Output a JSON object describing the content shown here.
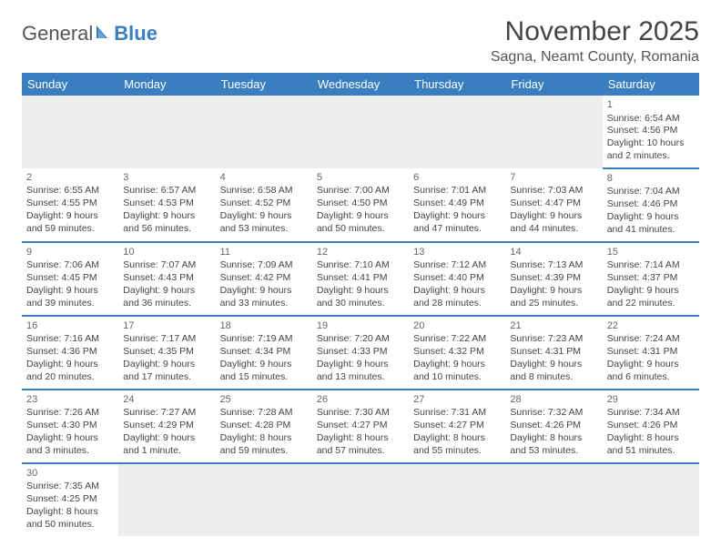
{
  "logo": {
    "part1": "General",
    "part2": "Blue"
  },
  "title": "November 2025",
  "location": "Sagna, Neamt County, Romania",
  "colors": {
    "header_bg": "#3a7ebf",
    "header_text": "#ffffff",
    "rule": "#3a7ebf",
    "blank_bg": "#eeeeee",
    "text": "#444444"
  },
  "day_names": [
    "Sunday",
    "Monday",
    "Tuesday",
    "Wednesday",
    "Thursday",
    "Friday",
    "Saturday"
  ],
  "weeks": [
    [
      null,
      null,
      null,
      null,
      null,
      null,
      {
        "n": "1",
        "sr": "Sunrise: 6:54 AM",
        "ss": "Sunset: 4:56 PM",
        "dl": "Daylight: 10 hours and 2 minutes."
      }
    ],
    [
      {
        "n": "2",
        "sr": "Sunrise: 6:55 AM",
        "ss": "Sunset: 4:55 PM",
        "dl": "Daylight: 9 hours and 59 minutes."
      },
      {
        "n": "3",
        "sr": "Sunrise: 6:57 AM",
        "ss": "Sunset: 4:53 PM",
        "dl": "Daylight: 9 hours and 56 minutes."
      },
      {
        "n": "4",
        "sr": "Sunrise: 6:58 AM",
        "ss": "Sunset: 4:52 PM",
        "dl": "Daylight: 9 hours and 53 minutes."
      },
      {
        "n": "5",
        "sr": "Sunrise: 7:00 AM",
        "ss": "Sunset: 4:50 PM",
        "dl": "Daylight: 9 hours and 50 minutes."
      },
      {
        "n": "6",
        "sr": "Sunrise: 7:01 AM",
        "ss": "Sunset: 4:49 PM",
        "dl": "Daylight: 9 hours and 47 minutes."
      },
      {
        "n": "7",
        "sr": "Sunrise: 7:03 AM",
        "ss": "Sunset: 4:47 PM",
        "dl": "Daylight: 9 hours and 44 minutes."
      },
      {
        "n": "8",
        "sr": "Sunrise: 7:04 AM",
        "ss": "Sunset: 4:46 PM",
        "dl": "Daylight: 9 hours and 41 minutes."
      }
    ],
    [
      {
        "n": "9",
        "sr": "Sunrise: 7:06 AM",
        "ss": "Sunset: 4:45 PM",
        "dl": "Daylight: 9 hours and 39 minutes."
      },
      {
        "n": "10",
        "sr": "Sunrise: 7:07 AM",
        "ss": "Sunset: 4:43 PM",
        "dl": "Daylight: 9 hours and 36 minutes."
      },
      {
        "n": "11",
        "sr": "Sunrise: 7:09 AM",
        "ss": "Sunset: 4:42 PM",
        "dl": "Daylight: 9 hours and 33 minutes."
      },
      {
        "n": "12",
        "sr": "Sunrise: 7:10 AM",
        "ss": "Sunset: 4:41 PM",
        "dl": "Daylight: 9 hours and 30 minutes."
      },
      {
        "n": "13",
        "sr": "Sunrise: 7:12 AM",
        "ss": "Sunset: 4:40 PM",
        "dl": "Daylight: 9 hours and 28 minutes."
      },
      {
        "n": "14",
        "sr": "Sunrise: 7:13 AM",
        "ss": "Sunset: 4:39 PM",
        "dl": "Daylight: 9 hours and 25 minutes."
      },
      {
        "n": "15",
        "sr": "Sunrise: 7:14 AM",
        "ss": "Sunset: 4:37 PM",
        "dl": "Daylight: 9 hours and 22 minutes."
      }
    ],
    [
      {
        "n": "16",
        "sr": "Sunrise: 7:16 AM",
        "ss": "Sunset: 4:36 PM",
        "dl": "Daylight: 9 hours and 20 minutes."
      },
      {
        "n": "17",
        "sr": "Sunrise: 7:17 AM",
        "ss": "Sunset: 4:35 PM",
        "dl": "Daylight: 9 hours and 17 minutes."
      },
      {
        "n": "18",
        "sr": "Sunrise: 7:19 AM",
        "ss": "Sunset: 4:34 PM",
        "dl": "Daylight: 9 hours and 15 minutes."
      },
      {
        "n": "19",
        "sr": "Sunrise: 7:20 AM",
        "ss": "Sunset: 4:33 PM",
        "dl": "Daylight: 9 hours and 13 minutes."
      },
      {
        "n": "20",
        "sr": "Sunrise: 7:22 AM",
        "ss": "Sunset: 4:32 PM",
        "dl": "Daylight: 9 hours and 10 minutes."
      },
      {
        "n": "21",
        "sr": "Sunrise: 7:23 AM",
        "ss": "Sunset: 4:31 PM",
        "dl": "Daylight: 9 hours and 8 minutes."
      },
      {
        "n": "22",
        "sr": "Sunrise: 7:24 AM",
        "ss": "Sunset: 4:31 PM",
        "dl": "Daylight: 9 hours and 6 minutes."
      }
    ],
    [
      {
        "n": "23",
        "sr": "Sunrise: 7:26 AM",
        "ss": "Sunset: 4:30 PM",
        "dl": "Daylight: 9 hours and 3 minutes."
      },
      {
        "n": "24",
        "sr": "Sunrise: 7:27 AM",
        "ss": "Sunset: 4:29 PM",
        "dl": "Daylight: 9 hours and 1 minute."
      },
      {
        "n": "25",
        "sr": "Sunrise: 7:28 AM",
        "ss": "Sunset: 4:28 PM",
        "dl": "Daylight: 8 hours and 59 minutes."
      },
      {
        "n": "26",
        "sr": "Sunrise: 7:30 AM",
        "ss": "Sunset: 4:27 PM",
        "dl": "Daylight: 8 hours and 57 minutes."
      },
      {
        "n": "27",
        "sr": "Sunrise: 7:31 AM",
        "ss": "Sunset: 4:27 PM",
        "dl": "Daylight: 8 hours and 55 minutes."
      },
      {
        "n": "28",
        "sr": "Sunrise: 7:32 AM",
        "ss": "Sunset: 4:26 PM",
        "dl": "Daylight: 8 hours and 53 minutes."
      },
      {
        "n": "29",
        "sr": "Sunrise: 7:34 AM",
        "ss": "Sunset: 4:26 PM",
        "dl": "Daylight: 8 hours and 51 minutes."
      }
    ],
    [
      {
        "n": "30",
        "sr": "Sunrise: 7:35 AM",
        "ss": "Sunset: 4:25 PM",
        "dl": "Daylight: 8 hours and 50 minutes."
      },
      null,
      null,
      null,
      null,
      null,
      null
    ]
  ]
}
